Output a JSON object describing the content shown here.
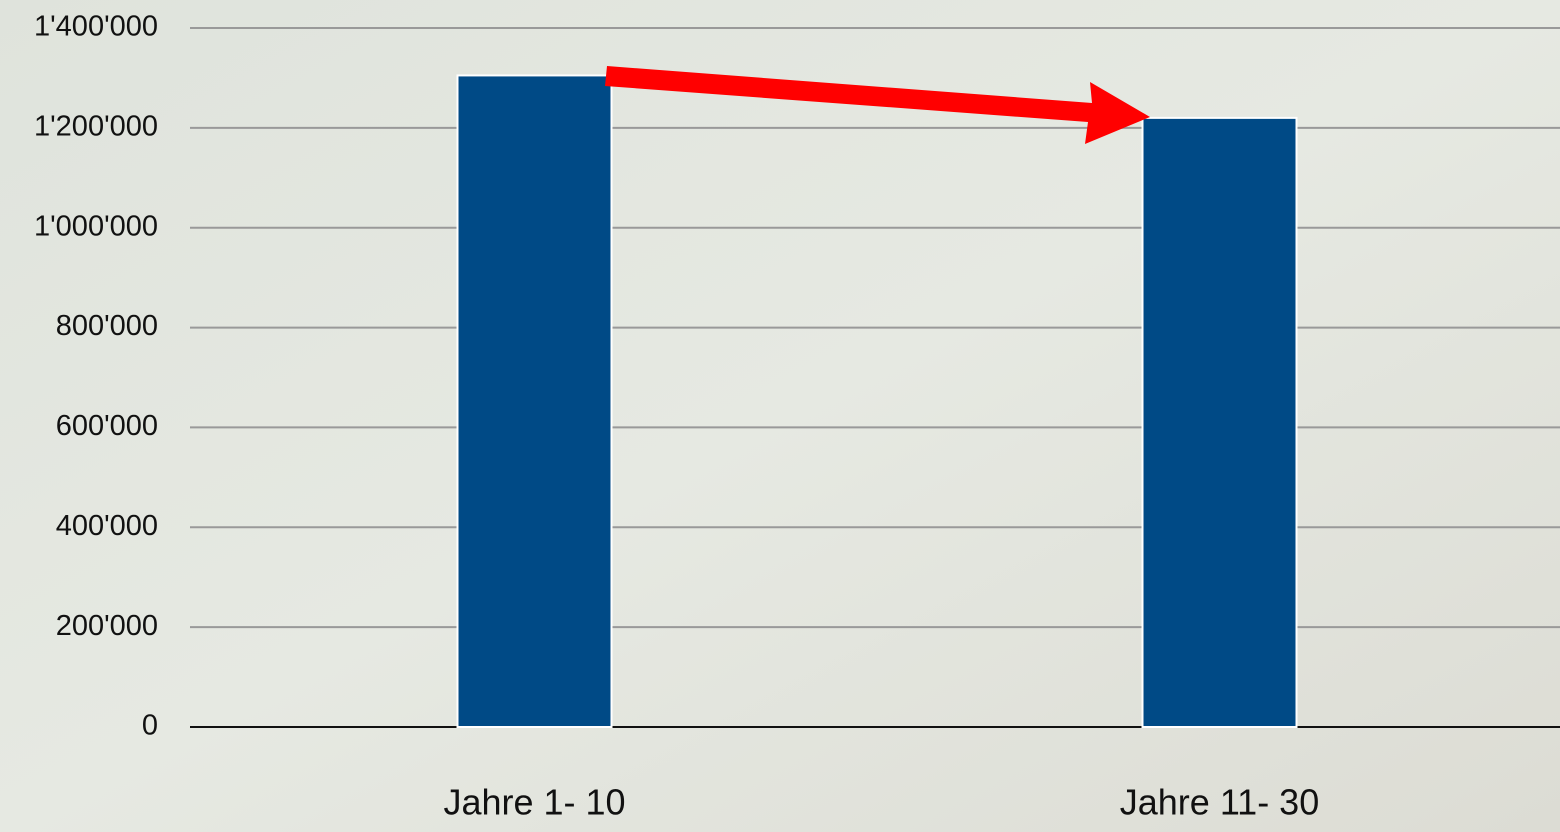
{
  "chart_data": {
    "type": "bar",
    "categories": [
      "Jahre 1- 10",
      "Jahre 11- 30"
    ],
    "values": [
      1305000,
      1220000
    ],
    "color": "#004a86",
    "ylim": [
      0,
      1400000
    ],
    "yticks": [
      0,
      {
        "value": 200000,
        "label": "200'000"
      },
      {
        "value": 400000,
        "label": "400'000"
      },
      {
        "value": 600000,
        "label": "600'000"
      },
      {
        "value": 800000,
        "label": "800'000"
      },
      {
        "value": 1000000,
        "label": "1'000'000"
      },
      {
        "value": 1200000,
        "label": "1'200'000"
      },
      {
        "value": 1400000,
        "label": "1'400'000"
      }
    ],
    "grid": true
  }
}
